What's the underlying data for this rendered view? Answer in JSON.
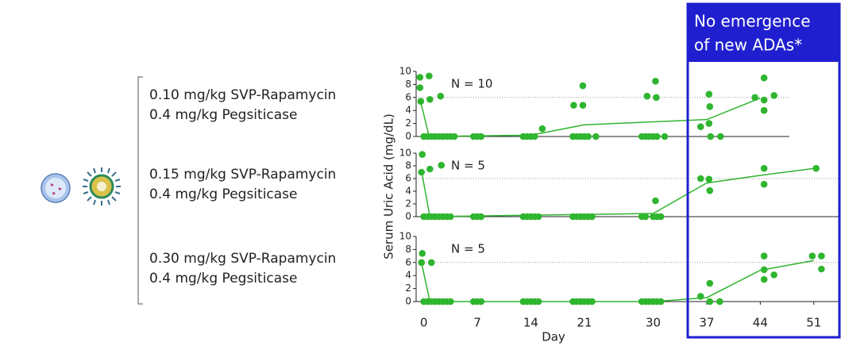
{
  "groups": [
    {
      "dose": "0.10 mg/kg SVP-Rapamycin",
      "enzyme": "0.4 mg/kg Pegsiticase"
    },
    {
      "dose": "0.15 mg/kg SVP-Rapamycin",
      "enzyme": "0.4 mg/kg Pegsiticase"
    },
    {
      "dose": "0.30 mg/kg SVP-Rapamycin",
      "enzyme": "0.4 mg/kg Pegsiticase"
    }
  ],
  "annotation": [
    "No emergence",
    "of new ADAs*"
  ],
  "chart_data": [
    {
      "type": "scatter",
      "annotation": "N = 10",
      "xlim": [
        -1,
        47.8
      ],
      "ylim": [
        0,
        10
      ],
      "yticks": [
        0,
        2,
        4,
        6,
        8,
        10
      ],
      "ref_line": 6,
      "color": "#2fb52f",
      "points": {
        "x": [
          -0.5,
          0.7,
          -0.5,
          -0.4,
          0.8,
          2.2,
          0,
          0.5,
          1,
          1.5,
          2,
          2.5,
          3,
          3.5,
          4,
          6.5,
          7,
          7.5,
          13,
          13.5,
          14,
          14.5,
          15.5,
          19.6,
          20.8,
          20.8,
          19.5,
          20,
          20.5,
          21,
          21.5,
          22.5,
          30.3,
          29.2,
          30.4,
          28.5,
          29,
          29.5,
          30,
          30.5,
          31.5,
          37.3,
          37.4,
          37.3,
          36.2,
          37.5,
          38.8,
          44.5,
          43.3,
          44.5,
          45.8,
          44.5
        ],
        "y": [
          9.1,
          9.3,
          7.5,
          5.4,
          5.7,
          6.2,
          0,
          0,
          0,
          0,
          0,
          0,
          0,
          0,
          0,
          0,
          0,
          0,
          0,
          0,
          0,
          0,
          1.2,
          4.8,
          4.8,
          7.8,
          0,
          0,
          0,
          0,
          0,
          0,
          8.5,
          6.2,
          6.0,
          0,
          0,
          0,
          0,
          0,
          0,
          6.5,
          4.6,
          2.0,
          1.5,
          0,
          0,
          9.0,
          6.0,
          5.6,
          6.3,
          4.0
        ]
      },
      "mean_line": {
        "x": [
          -0.5,
          0.7,
          14,
          21,
          37,
          44
        ],
        "y": [
          5.8,
          0,
          0.2,
          1.8,
          2.6,
          5.9
        ]
      }
    },
    {
      "type": "scatter",
      "annotation": "N = 5",
      "ylabel": "Serum Uric Acid (mg/dL)",
      "xlim": [
        -1,
        54.5
      ],
      "ylim": [
        0,
        10
      ],
      "yticks": [
        0,
        2,
        4,
        6,
        8,
        10
      ],
      "ref_line": 6,
      "color": "#2fb52f",
      "points": {
        "x": [
          -0.2,
          -0.3,
          0.8,
          2.3,
          0,
          0.5,
          1,
          1.5,
          2,
          2.5,
          3,
          3.5,
          6.5,
          7,
          7.5,
          13,
          13.5,
          14,
          14.5,
          15,
          19.5,
          20,
          20.5,
          21,
          21.5,
          22,
          30.3,
          28.5,
          29,
          30,
          30.5,
          31,
          36.2,
          37.3,
          37.4,
          44.5,
          44.5,
          51.3
        ],
        "y": [
          9.8,
          7.0,
          7.5,
          8.1,
          0,
          0,
          0,
          0,
          0,
          0,
          0,
          0,
          0,
          0,
          0,
          0,
          0,
          0,
          0,
          0,
          0,
          0,
          0,
          0,
          0,
          0,
          2.5,
          0,
          0,
          0,
          0,
          0,
          6.0,
          5.9,
          4.1,
          7.6,
          5.1,
          7.6
        ]
      },
      "mean_line": {
        "x": [
          -0.3,
          0.8,
          30,
          37,
          44,
          51
        ],
        "y": [
          7.2,
          0,
          0.5,
          5.3,
          6.5,
          7.6
        ]
      }
    },
    {
      "type": "scatter",
      "annotation": "N = 5",
      "xlabel": "Day",
      "xlim": [
        -1,
        54.5
      ],
      "ylim": [
        0,
        10
      ],
      "yticks": [
        0,
        2,
        4,
        6,
        8,
        10
      ],
      "xticks": [
        0,
        7,
        14,
        21,
        30,
        37,
        44,
        51
      ],
      "ref_line": 6,
      "color": "#2fb52f",
      "points": {
        "x": [
          -0.2,
          -0.3,
          1.0,
          0,
          0.5,
          1,
          1.5,
          2,
          2.5,
          3,
          3.5,
          6.5,
          7,
          7.5,
          13,
          13.5,
          14,
          14.5,
          15,
          19.5,
          20,
          20.5,
          21,
          21.5,
          22,
          28.5,
          29,
          29.5,
          30,
          30.5,
          31,
          36.2,
          37.4,
          37.4,
          38.7,
          44.5,
          44.5,
          44.5,
          45.8,
          50.8,
          52,
          52
        ],
        "y": [
          7.4,
          6.0,
          6.0,
          0,
          0,
          0,
          0,
          0,
          0,
          0,
          0,
          0,
          0,
          0,
          0,
          0,
          0,
          0,
          0,
          0,
          0,
          0,
          0,
          0,
          0,
          0,
          0,
          0,
          0,
          0,
          0,
          0.8,
          2.8,
          0,
          0,
          3.4,
          7.0,
          4.9,
          4.1,
          7.0,
          7.0,
          5.0
        ]
      },
      "mean_line": {
        "x": [
          -0.3,
          0.8,
          30,
          37,
          44,
          51
        ],
        "y": [
          6.0,
          0,
          0,
          0.6,
          4.8,
          6.3
        ]
      }
    }
  ]
}
